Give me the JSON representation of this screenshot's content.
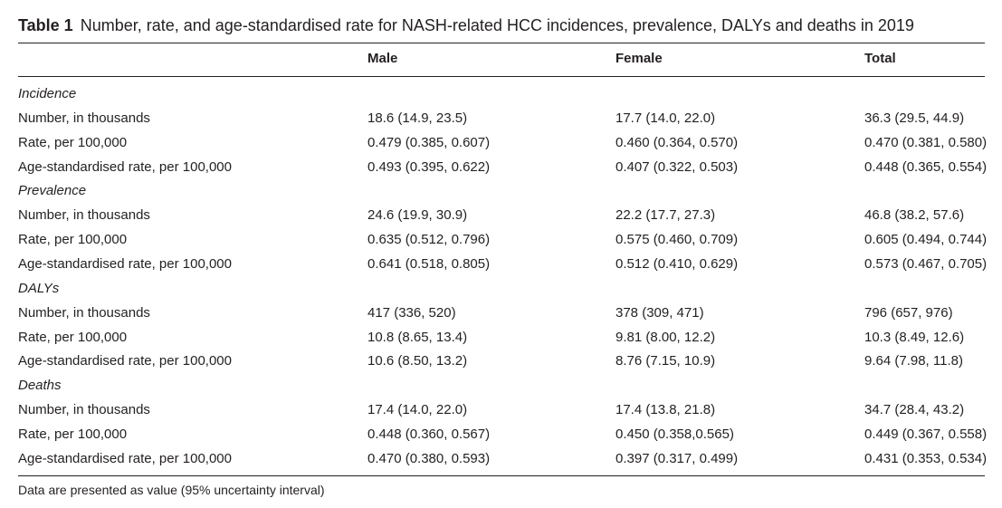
{
  "caption": {
    "label": "Table 1",
    "text": "Number, rate, and age-standardised rate for NASH-related HCC incidences, prevalence, DALYs and deaths in 2019"
  },
  "table": {
    "columns": [
      "Male",
      "Female",
      "Total"
    ],
    "groups": [
      {
        "name": "Incidence",
        "rows": [
          {
            "label": "Number, in thousands",
            "cells": [
              "18.6 (14.9, 23.5)",
              "17.7 (14.0, 22.0)",
              "36.3 (29.5, 44.9)"
            ]
          },
          {
            "label": "Rate, per 100,000",
            "cells": [
              "0.479 (0.385, 0.607)",
              "0.460 (0.364, 0.570)",
              "0.470 (0.381, 0.580)"
            ]
          },
          {
            "label": "Age-standardised rate, per 100,000",
            "cells": [
              "0.493 (0.395, 0.622)",
              "0.407 (0.322, 0.503)",
              "0.448 (0.365, 0.554)"
            ]
          }
        ]
      },
      {
        "name": "Prevalence",
        "rows": [
          {
            "label": "Number, in thousands",
            "cells": [
              "24.6 (19.9, 30.9)",
              "22.2 (17.7, 27.3)",
              "46.8 (38.2, 57.6)"
            ]
          },
          {
            "label": "Rate, per 100,000",
            "cells": [
              "0.635 (0.512, 0.796)",
              "0.575 (0.460, 0.709)",
              "0.605 (0.494, 0.744)"
            ]
          },
          {
            "label": "Age-standardised rate, per 100,000",
            "cells": [
              "0.641 (0.518, 0.805)",
              "0.512 (0.410, 0.629)",
              "0.573 (0.467, 0.705)"
            ]
          }
        ]
      },
      {
        "name": "DALYs",
        "rows": [
          {
            "label": "Number, in thousands",
            "cells": [
              "417 (336, 520)",
              "378 (309, 471)",
              "796 (657, 976)"
            ]
          },
          {
            "label": "Rate, per 100,000",
            "cells": [
              "10.8 (8.65, 13.4)",
              "9.81 (8.00, 12.2)",
              "10.3 (8.49, 12.6)"
            ]
          },
          {
            "label": "Age-standardised rate, per 100,000",
            "cells": [
              "10.6 (8.50, 13.2)",
              "8.76 (7.15, 10.9)",
              "9.64 (7.98, 11.8)"
            ]
          }
        ]
      },
      {
        "name": "Deaths",
        "rows": [
          {
            "label": "Number, in thousands",
            "cells": [
              "17.4 (14.0, 22.0)",
              "17.4 (13.8, 21.8)",
              "34.7 (28.4, 43.2)"
            ]
          },
          {
            "label": "Rate, per 100,000",
            "cells": [
              "0.448 (0.360, 0.567)",
              "0.450 (0.358,0.565)",
              "0.449 (0.367, 0.558)"
            ]
          },
          {
            "label": "Age-standardised rate, per 100,000",
            "cells": [
              "0.470 (0.380, 0.593)",
              "0.397 (0.317, 0.499)",
              "0.431 (0.353, 0.534)"
            ]
          }
        ]
      }
    ]
  },
  "footnote": "Data are presented as value (95% uncertainty interval)"
}
